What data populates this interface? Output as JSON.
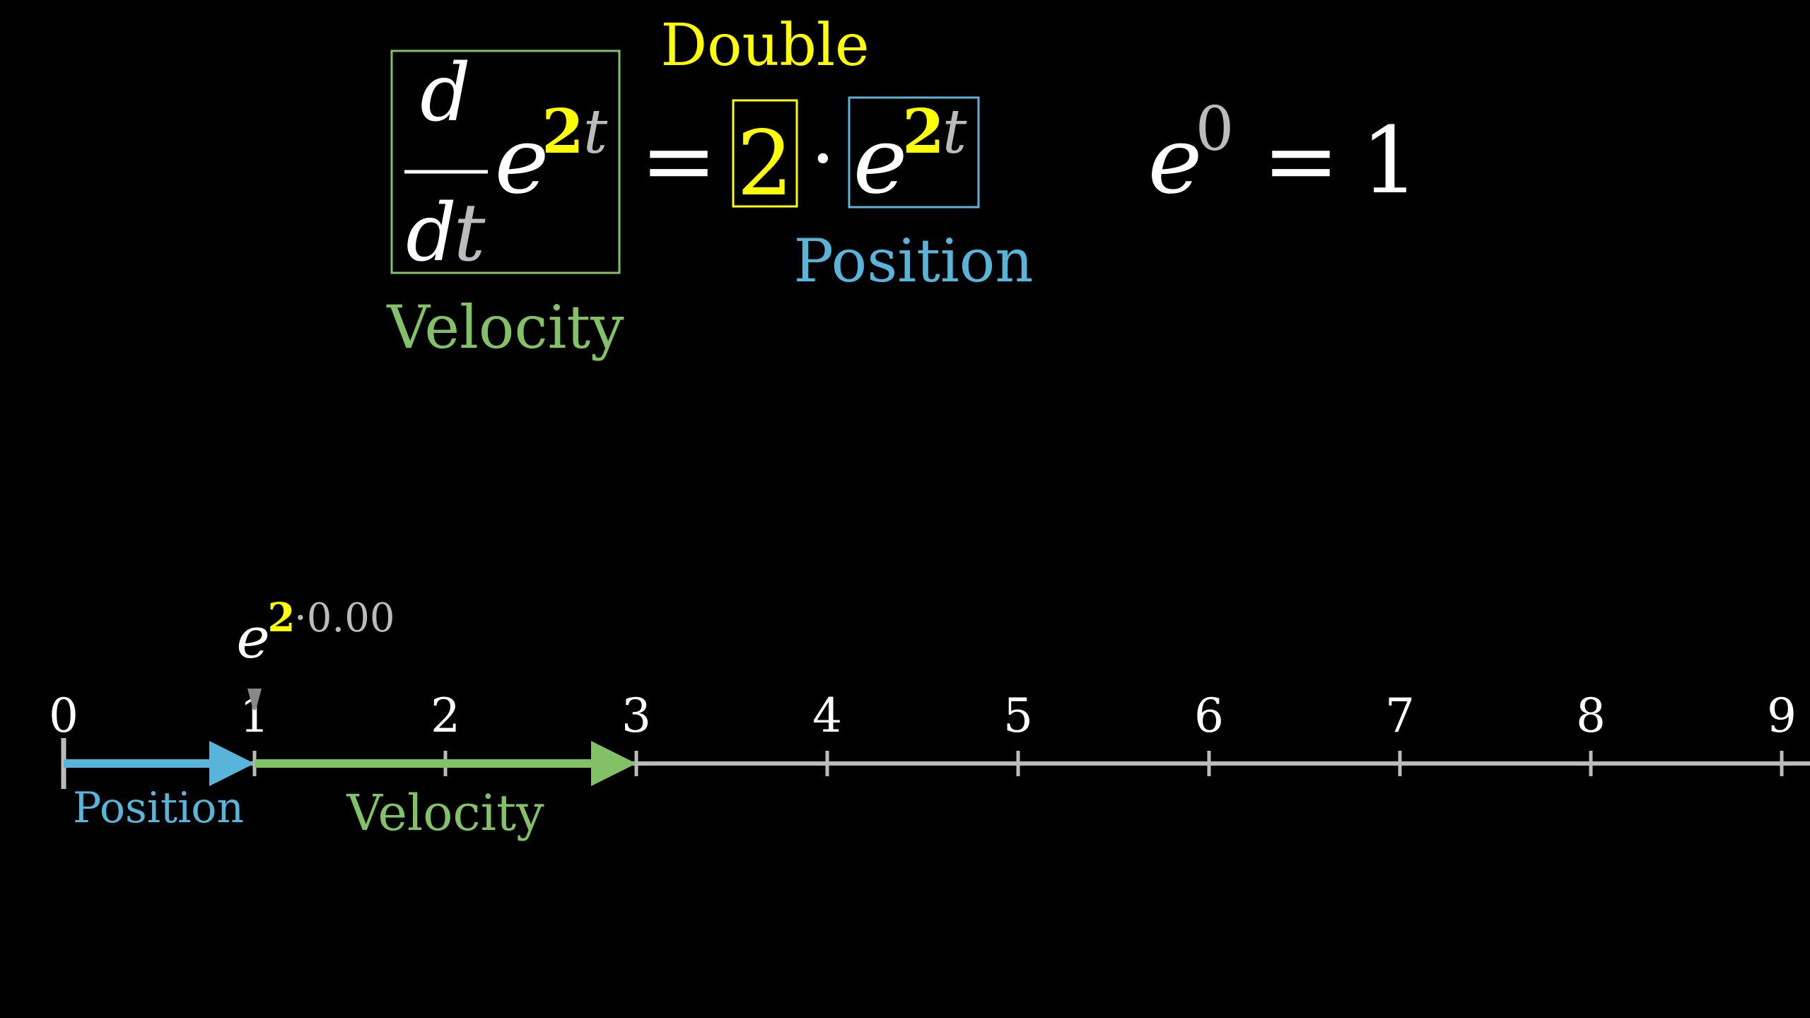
{
  "colors": {
    "background": "#000000",
    "white": "#ffffff",
    "yellow": "#ffff00",
    "blue": "#58b4d8",
    "green": "#83c167",
    "gray": "#bbbbbb",
    "axis": "#bbbbbb"
  },
  "equation": {
    "derivative_numerator": "d",
    "derivative_denominator_d": "d",
    "derivative_denominator_t": "t",
    "base_left": "e",
    "exponent_left_coef": "2",
    "exponent_left_var": "t",
    "equals": "=",
    "factor": "2",
    "dot": "·",
    "base_right": "e",
    "exponent_right_coef": "2",
    "exponent_right_var": "t",
    "label_double": "Double",
    "label_velocity": "Velocity",
    "label_position": "Position"
  },
  "identity": {
    "base": "e",
    "exponent": "0",
    "equals": "=",
    "value": "1"
  },
  "number_line": {
    "ticks": [
      "0",
      "1",
      "2",
      "3",
      "4",
      "5",
      "6",
      "7",
      "8",
      "9"
    ],
    "position_label": "Position",
    "velocity_label": "Velocity",
    "position_value": 1,
    "velocity_value": 2,
    "marker": {
      "base": "e",
      "coef": "2",
      "dot_time": "·0.00"
    }
  }
}
